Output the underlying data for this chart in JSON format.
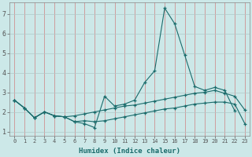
{
  "xlabel": "Humidex (Indice chaleur)",
  "xlim_min": -0.5,
  "xlim_max": 23.5,
  "ylim_min": 0.8,
  "ylim_max": 7.6,
  "yticks": [
    1,
    2,
    3,
    4,
    5,
    6,
    7
  ],
  "xticks": [
    0,
    1,
    2,
    3,
    4,
    5,
    6,
    7,
    8,
    9,
    10,
    11,
    12,
    13,
    14,
    15,
    16,
    17,
    18,
    19,
    20,
    21,
    22,
    23
  ],
  "background_color": "#cce8e8",
  "grid_color_h": "#b0c8c8",
  "grid_color_v": "#d08080",
  "line_color": "#1a6b6b",
  "line1_x": [
    0,
    1,
    2,
    3,
    4,
    5,
    6,
    7,
    8,
    9,
    10,
    11,
    12,
    13,
    14,
    15,
    16,
    17,
    18,
    19,
    20,
    21,
    22,
    23
  ],
  "line1_y": [
    2.6,
    2.2,
    1.7,
    2.0,
    1.8,
    1.75,
    1.5,
    1.4,
    1.2,
    2.8,
    2.3,
    2.4,
    2.6,
    3.5,
    4.1,
    7.3,
    6.5,
    4.9,
    3.3,
    3.1,
    3.25,
    3.1,
    2.05,
    null
  ],
  "line2_x": [
    0,
    1,
    2,
    3,
    4,
    5,
    6,
    7,
    8,
    9,
    10,
    11,
    12,
    13,
    14,
    15,
    16,
    17,
    18,
    19,
    20,
    21,
    22,
    23
  ],
  "line2_y": [
    2.6,
    2.2,
    1.7,
    2.0,
    1.8,
    1.75,
    1.8,
    1.9,
    2.0,
    2.1,
    2.2,
    2.3,
    2.35,
    2.45,
    2.55,
    2.65,
    2.75,
    2.85,
    2.95,
    3.0,
    3.1,
    2.95,
    2.8,
    2.1
  ],
  "line3_x": [
    0,
    1,
    2,
    3,
    4,
    5,
    6,
    7,
    8,
    9,
    10,
    11,
    12,
    13,
    14,
    15,
    16,
    17,
    18,
    19,
    20,
    21,
    22,
    23
  ],
  "line3_y": [
    2.6,
    2.2,
    1.7,
    2.0,
    1.8,
    1.75,
    1.5,
    1.55,
    1.5,
    1.55,
    1.65,
    1.75,
    1.85,
    1.95,
    2.05,
    2.15,
    2.2,
    2.3,
    2.4,
    2.45,
    2.5,
    2.5,
    2.4,
    1.4
  ]
}
